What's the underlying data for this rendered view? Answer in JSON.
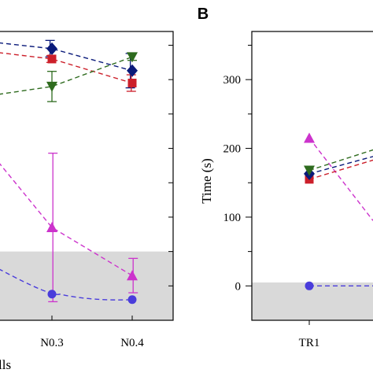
{
  "panels": {
    "left": {
      "categories": [
        "N0.3",
        "N0.4"
      ],
      "xlabel_fragment": "lls",
      "colors": {
        "navy": "#0a1a7a",
        "red": "#cc1f2a",
        "green": "#2e6b1e",
        "magenta": "#cc33cc",
        "blue": "#4a3ddb",
        "shade": "#d9d9d9"
      }
    },
    "right": {
      "label": "B",
      "ylabel": "Time (s)",
      "yticks": [
        0,
        100,
        200,
        300
      ],
      "ylim": [
        -50,
        370
      ],
      "categories": [
        "TR1"
      ]
    }
  },
  "chart_data": [
    {
      "type": "scatter",
      "panel": "left",
      "categories": [
        "N0.3",
        "N0.4"
      ],
      "series": [
        {
          "color": "navy",
          "marker": "diamond",
          "values": [
            345,
            313
          ],
          "errors": [
            12,
            25
          ]
        },
        {
          "color": "red",
          "marker": "square",
          "values": [
            330,
            295
          ],
          "errors": [
            5,
            12
          ]
        },
        {
          "color": "green",
          "marker": "triangle-down",
          "values": [
            290,
            333
          ],
          "errors": [
            22,
            5
          ]
        },
        {
          "color": "magenta",
          "marker": "triangle-up",
          "values": [
            85,
            15
          ],
          "errors": [
            108,
            25
          ]
        },
        {
          "color": "blue",
          "marker": "circle",
          "values": [
            -12,
            -20
          ],
          "errors": [
            0,
            0
          ]
        }
      ],
      "shaded_band": [
        -50,
        50
      ]
    },
    {
      "type": "scatter",
      "panel": "right",
      "title": "",
      "ylabel": "Time (s)",
      "ylim": [
        -50,
        370
      ],
      "categories": [
        "TR1"
      ],
      "series": [
        {
          "color": "magenta",
          "marker": "triangle-up",
          "values": [
            215
          ]
        },
        {
          "color": "green",
          "marker": "triangle-down",
          "values": [
            168
          ]
        },
        {
          "color": "navy",
          "marker": "diamond",
          "values": [
            163
          ]
        },
        {
          "color": "red",
          "marker": "square",
          "values": [
            155
          ]
        },
        {
          "color": "blue",
          "marker": "circle",
          "values": [
            0
          ]
        }
      ],
      "shaded_band": [
        -50,
        5
      ]
    }
  ]
}
